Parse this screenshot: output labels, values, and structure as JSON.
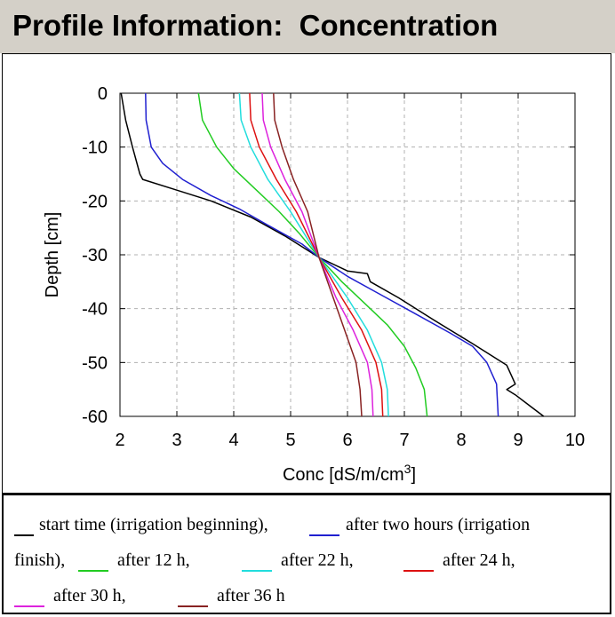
{
  "header": {
    "title": "Profile Information:  Concentration"
  },
  "chart_data": {
    "type": "line",
    "title": "",
    "xlabel": "Conc [dS/m/cm",
    "xlabel_sup": "3",
    "xlabel_tail": "]",
    "ylabel": "Depth [cm]",
    "xlim": [
      2,
      10
    ],
    "ylim": [
      -60,
      0
    ],
    "x_ticks": [
      "2",
      "3",
      "4",
      "5",
      "6",
      "7",
      "8",
      "9",
      "10"
    ],
    "y_ticks": [
      "0",
      "-10",
      "-20",
      "-30",
      "-40",
      "-50",
      "-60"
    ],
    "grid": true,
    "series": [
      {
        "name": "start time (irrigation beginning)",
        "color": "#000000",
        "points": [
          [
            2.02,
            0
          ],
          [
            2.1,
            -5
          ],
          [
            2.22,
            -10
          ],
          [
            2.35,
            -15
          ],
          [
            2.4,
            -16
          ],
          [
            3.0,
            -18
          ],
          [
            3.6,
            -20
          ],
          [
            4.3,
            -23
          ],
          [
            4.9,
            -26.5
          ],
          [
            5.5,
            -30.5
          ],
          [
            6.0,
            -33
          ],
          [
            6.35,
            -33.5
          ],
          [
            6.4,
            -35
          ],
          [
            6.9,
            -38
          ],
          [
            7.5,
            -42
          ],
          [
            8.2,
            -46.5
          ],
          [
            8.8,
            -50.5
          ],
          [
            8.95,
            -54
          ],
          [
            8.8,
            -55
          ],
          [
            8.95,
            -56
          ],
          [
            9.2,
            -58
          ],
          [
            9.45,
            -60
          ]
        ]
      },
      {
        "name": "after two hours (irrigation finish)",
        "color": "#2020d0",
        "points": [
          [
            2.45,
            0
          ],
          [
            2.46,
            -5
          ],
          [
            2.55,
            -10
          ],
          [
            2.75,
            -13
          ],
          [
            3.1,
            -16
          ],
          [
            3.6,
            -19
          ],
          [
            4.1,
            -21.5
          ],
          [
            4.6,
            -24.5
          ],
          [
            5.2,
            -28
          ],
          [
            5.5,
            -30.5
          ],
          [
            6.0,
            -34
          ],
          [
            6.6,
            -37.5
          ],
          [
            7.2,
            -41
          ],
          [
            7.8,
            -44.5
          ],
          [
            8.2,
            -47
          ],
          [
            8.45,
            -50
          ],
          [
            8.62,
            -54
          ],
          [
            8.65,
            -60
          ]
        ]
      },
      {
        "name": "after 12 h",
        "color": "#22cc22",
        "points": [
          [
            3.38,
            0
          ],
          [
            3.45,
            -5
          ],
          [
            3.7,
            -10
          ],
          [
            4.0,
            -14
          ],
          [
            4.4,
            -18
          ],
          [
            4.8,
            -22
          ],
          [
            5.15,
            -26
          ],
          [
            5.5,
            -30.5
          ],
          [
            5.9,
            -35
          ],
          [
            6.3,
            -39
          ],
          [
            6.7,
            -43
          ],
          [
            7.0,
            -47
          ],
          [
            7.2,
            -51
          ],
          [
            7.35,
            -55
          ],
          [
            7.4,
            -60
          ]
        ]
      },
      {
        "name": "after 22 h",
        "color": "#22dddd",
        "points": [
          [
            4.1,
            0
          ],
          [
            4.13,
            -5
          ],
          [
            4.3,
            -10
          ],
          [
            4.6,
            -16
          ],
          [
            5.0,
            -22
          ],
          [
            5.5,
            -30.5
          ],
          [
            6.0,
            -38
          ],
          [
            6.35,
            -44
          ],
          [
            6.6,
            -50
          ],
          [
            6.7,
            -55
          ],
          [
            6.72,
            -60
          ]
        ]
      },
      {
        "name": "after 24 h",
        "color": "#dd1111",
        "points": [
          [
            4.28,
            0
          ],
          [
            4.3,
            -5
          ],
          [
            4.45,
            -10
          ],
          [
            4.75,
            -16
          ],
          [
            5.1,
            -22
          ],
          [
            5.5,
            -30.5
          ],
          [
            5.9,
            -38
          ],
          [
            6.25,
            -44
          ],
          [
            6.5,
            -50
          ],
          [
            6.6,
            -55
          ],
          [
            6.62,
            -60
          ]
        ]
      },
      {
        "name": "after 30 h",
        "color": "#dd22dd",
        "points": [
          [
            4.5,
            0
          ],
          [
            4.52,
            -5
          ],
          [
            4.65,
            -10
          ],
          [
            4.9,
            -16
          ],
          [
            5.2,
            -22
          ],
          [
            5.5,
            -30.5
          ],
          [
            5.8,
            -38
          ],
          [
            6.1,
            -44
          ],
          [
            6.35,
            -50
          ],
          [
            6.43,
            -55
          ],
          [
            6.45,
            -60
          ]
        ]
      },
      {
        "name": "after 36 h",
        "color": "#882222",
        "points": [
          [
            4.7,
            0
          ],
          [
            4.72,
            -5
          ],
          [
            4.85,
            -10
          ],
          [
            5.05,
            -16
          ],
          [
            5.3,
            -22
          ],
          [
            5.5,
            -30.5
          ],
          [
            5.75,
            -38
          ],
          [
            5.95,
            -44
          ],
          [
            6.15,
            -50
          ],
          [
            6.22,
            -55
          ],
          [
            6.25,
            -60
          ]
        ]
      }
    ]
  },
  "legend": {
    "items": [
      {
        "label": "start time (irrigation beginning),",
        "color": "#000000"
      },
      {
        "label": "after two hours (irrigation",
        "color": "#2020d0"
      },
      {
        "label": "finish),",
        "color": null
      },
      {
        "label": "after 12 h,",
        "color": "#22cc22"
      },
      {
        "label": "after 22 h,",
        "color": "#22dddd"
      },
      {
        "label": "after 24 h,",
        "color": "#dd1111"
      },
      {
        "label": "after 30 h,",
        "color": "#dd22dd"
      },
      {
        "label": "after 36 h",
        "color": "#882222"
      }
    ]
  }
}
